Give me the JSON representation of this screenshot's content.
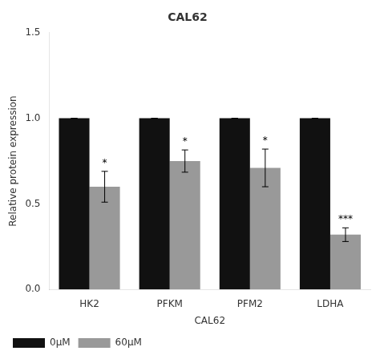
{
  "chart_data": {
    "type": "bar",
    "title": "CAL62",
    "xlabel": "CAL62",
    "ylabel": "Relative protein expression",
    "categories": [
      "HK2",
      "PFKM",
      "PFM2",
      "LDHA"
    ],
    "series": [
      {
        "name": "0μM",
        "color": "#111111",
        "values": [
          1.0,
          1.0,
          1.0,
          1.0
        ],
        "errors": [
          0.0,
          0.0,
          0.0,
          0.0
        ]
      },
      {
        "name": "60μM",
        "color": "#999999",
        "values": [
          0.6,
          0.75,
          0.71,
          0.32
        ],
        "errors": [
          0.09,
          0.065,
          0.11,
          0.04
        ],
        "annotations": [
          "*",
          "*",
          "*",
          "***"
        ]
      }
    ],
    "ylim": [
      0,
      1.5
    ],
    "yticks": [
      {
        "value": 0,
        "label": "0.0"
      },
      0.5,
      {
        "value": 1,
        "label": "1.0"
      },
      1.5
    ],
    "grid": false,
    "legend": "bottom"
  }
}
